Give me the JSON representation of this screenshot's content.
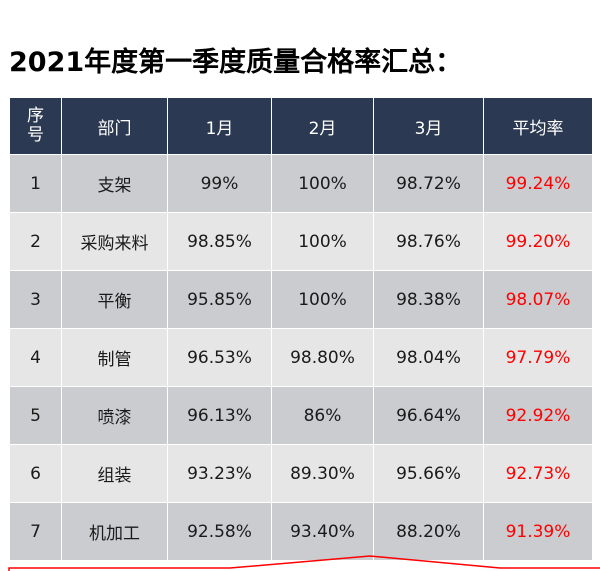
{
  "title": "2021年度第一季度质量合格率汇总：",
  "headers": [
    "序号",
    "部门",
    "1月",
    "2月",
    "3月",
    "平均率"
  ],
  "rows": [
    [
      "1",
      "支架",
      "99%",
      "100%",
      "98.72%",
      "99.24%"
    ],
    [
      "2",
      "采购来料",
      "98.85%",
      "100%",
      "98.76%",
      "99.20%"
    ],
    [
      "3",
      "平衡",
      "95.85%",
      "100%",
      "98.38%",
      "98.07%"
    ],
    [
      "4",
      "制管",
      "96.53%",
      "98.80%",
      "98.04%",
      "97.79%"
    ],
    [
      "5",
      "喷漆",
      "96.13%",
      "86%",
      "96.64%",
      "92.92%"
    ],
    [
      "6",
      "组装",
      "93.23%",
      "89.30%",
      "95.66%",
      "92.73%"
    ],
    [
      "7",
      "机加工",
      "92.58%",
      "93.40%",
      "88.20%",
      "91.39%"
    ]
  ],
  "colors": {
    "header": "#2b3a52",
    "average_text": "#ff0000",
    "row_dark": "#cbcccf",
    "row_light": "#e6e6e6"
  }
}
